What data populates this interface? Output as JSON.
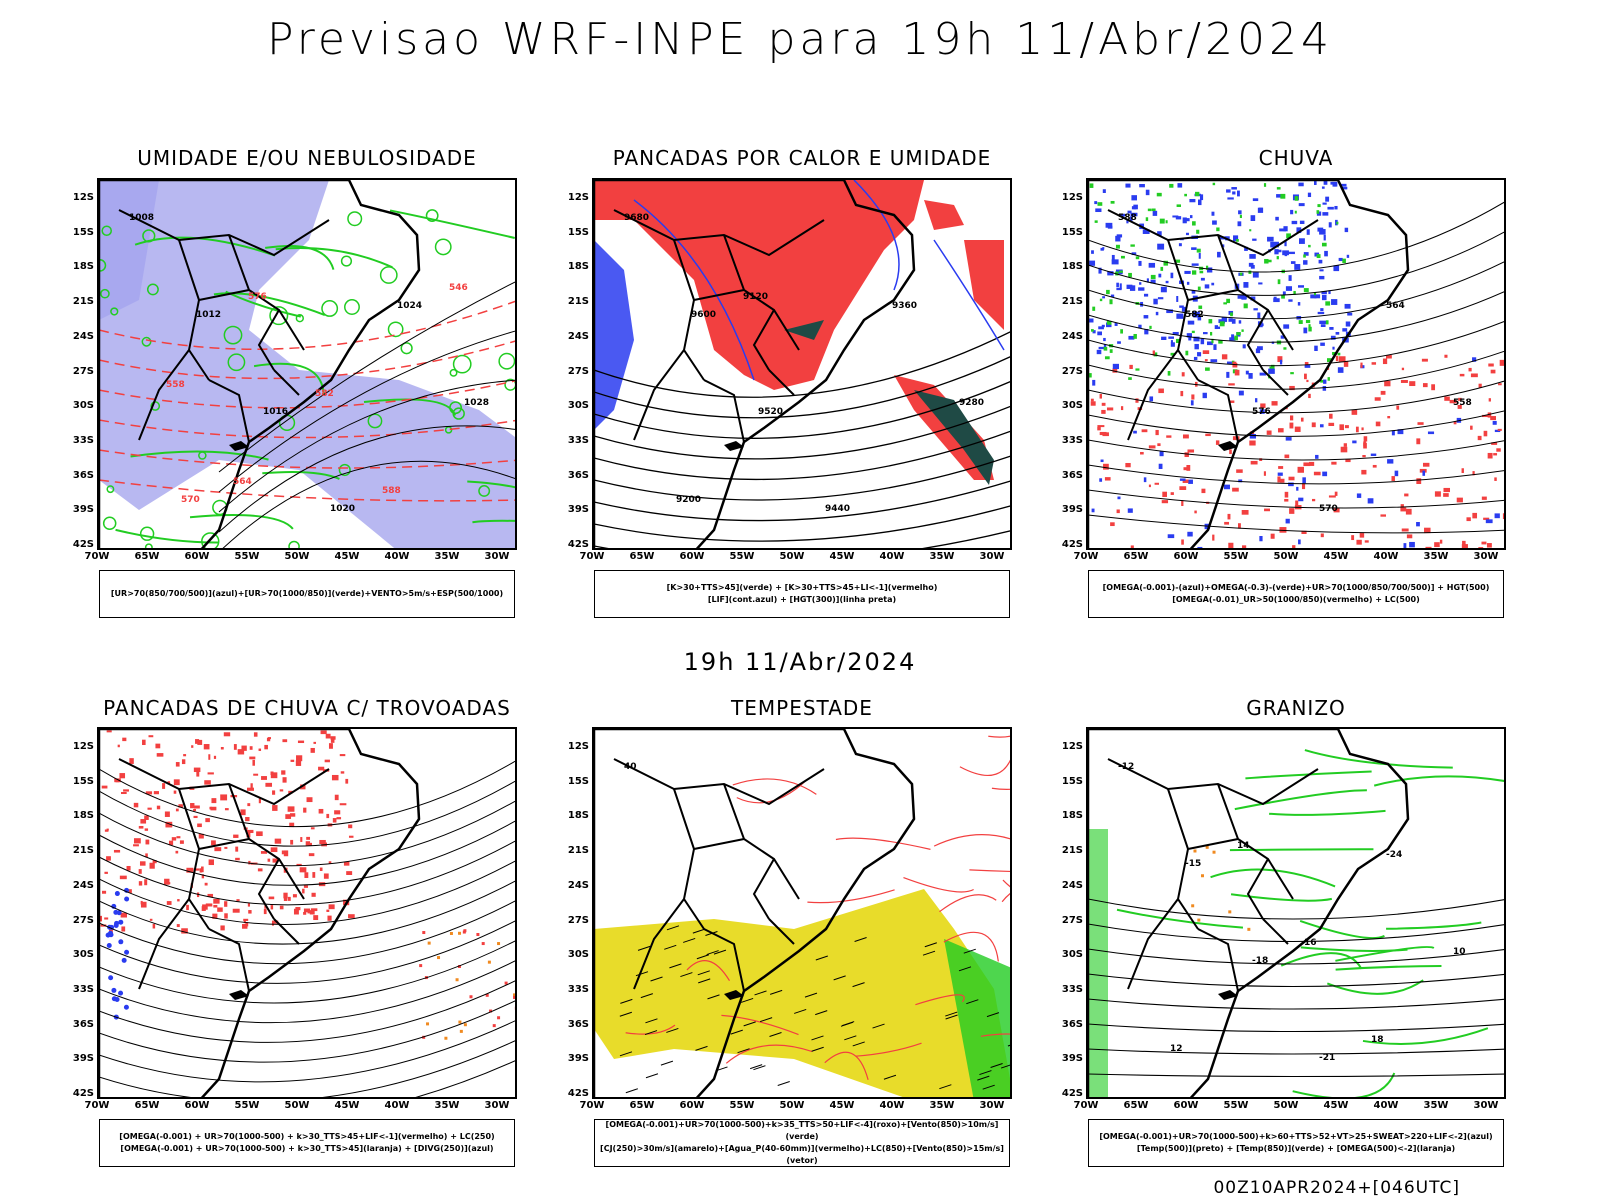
{
  "title": "Previsao WRF-INPE  para 19h 11/Abr/2024",
  "mid_title": "19h 11/Abr/2024",
  "footer": "00Z10APR2024+[046UTC]",
  "lat_labels": [
    "12S",
    "15S",
    "18S",
    "21S",
    "24S",
    "27S",
    "30S",
    "33S",
    "36S",
    "39S",
    "42S"
  ],
  "lon_labels": [
    "70W",
    "65W",
    "60W",
    "55W",
    "50W",
    "45W",
    "40W",
    "35W",
    "30W"
  ],
  "colors": {
    "humidity_blue": "#a6a6ee",
    "green": "#22cc22",
    "red": "#f24040",
    "dark_teal": "#1f4a45",
    "blue": "#2a3cf0",
    "yellow": "#e8dc2a",
    "orange": "#f08a20"
  },
  "panels": [
    {
      "title": "UMIDADE E/OU NEBULOSIDADE",
      "legend": [
        "[UR>70(850/700/500)](azul)+[UR>70(1000/850)](verde)+VENTO>5m/s+ESP(500/1000)"
      ],
      "contour_labels": [
        "1008",
        "1012",
        "1016",
        "1020",
        "1024",
        "1028",
        "570",
        "576",
        "582",
        "588",
        "546",
        "558",
        "564"
      ]
    },
    {
      "title": "PANCADAS POR CALOR E UMIDADE",
      "legend": [
        "[K>30+TTS>45](verde)  +  [K>30+TTS>45+LI<-1](vermelho)",
        "[LIF](cont.azul)  +  [HGT(300)](linha preta)"
      ],
      "contour_labels": [
        "9680",
        "9600",
        "9520",
        "9440",
        "9360",
        "9280",
        "9200",
        "9120"
      ]
    },
    {
      "title": "CHUVA",
      "legend": [
        "[OMEGA(-0.001)-(azul)+OMEGA(-0.3)-(verde)+UR>70(1000/850/700/500)]  +  HGT(500)",
        "[OMEGA(-0.01)_UR>50(1000/850)(vermelho)  +  LC(500)"
      ],
      "contour_labels": [
        "588",
        "582",
        "576",
        "570",
        "564",
        "558"
      ]
    },
    {
      "title": "PANCADAS DE CHUVA C/ TROVOADAS",
      "legend": [
        "[OMEGA(-0.001)  +  UR>70(1000-500)  +  k>30_TTS>45+LIF<-1](vermelho)  +  LC(250)",
        "[OMEGA(-0.001)  +  UR>70(1000-500)  +  k>30_TTS>45](laranja)  +  [DIVG(250)](azul)"
      ]
    },
    {
      "title": "TEMPESTADE",
      "legend": [
        "[OMEGA(-0.001)+UR>70(1000-500)+k>35_TTS>50+LIF<-4](roxo)+[Vento(850)>10m/s](verde)",
        "[CJ(250)>30m/s](amarelo)+[Agua_P(40-60mm)](vermelho)+LC(850)+[Vento(850)>15m/s](vetor)"
      ],
      "contour_labels": [
        "40"
      ]
    },
    {
      "title": "GRANIZO",
      "legend": [
        "[OMEGA(-0.001)+UR>70(1000-500)+k>60+TTS>52+VT>25+SWEAT>220+LIF<-2](azul)",
        "[Temp(500)](preto)  +  [Temp(850)](verde)  +  [OMEGA(500)<-2](laranja)"
      ],
      "contour_labels": [
        "-12",
        "-15",
        "-18",
        "-21",
        "-24",
        "10",
        "12",
        "14",
        "16",
        "18"
      ]
    }
  ]
}
